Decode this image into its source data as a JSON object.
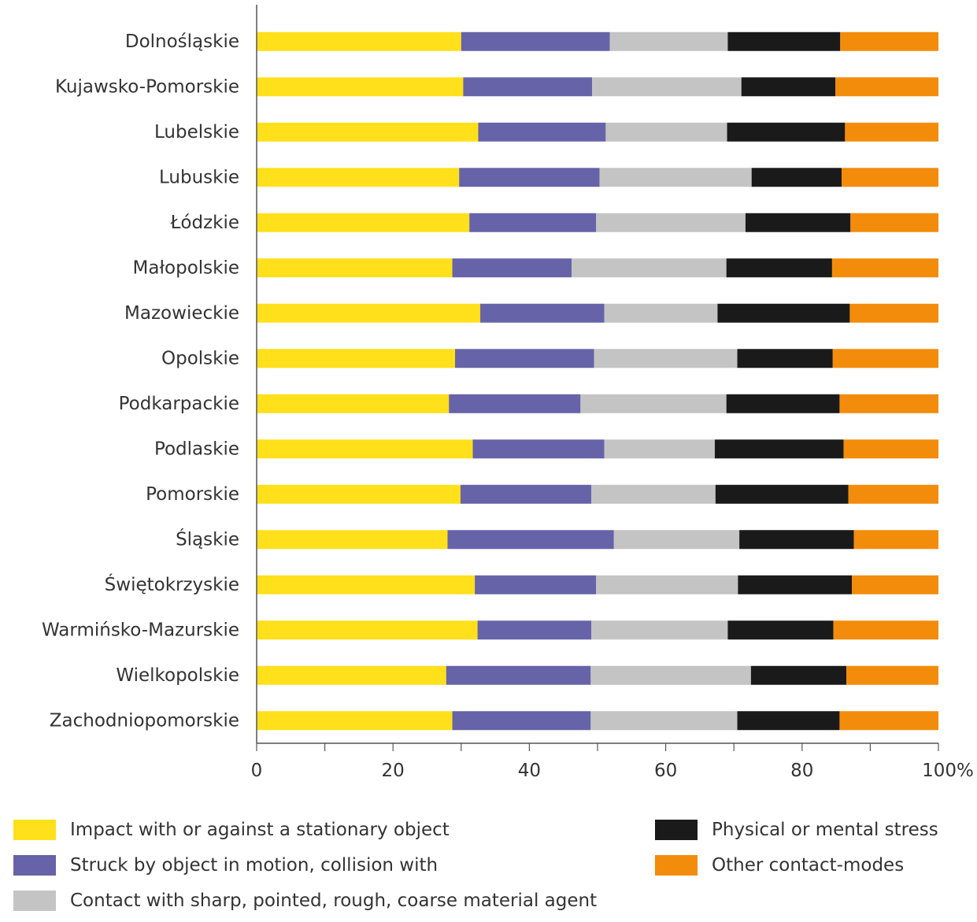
{
  "chart_data": {
    "type": "bar",
    "orientation": "horizontal",
    "stacked": true,
    "title": "",
    "xlabel": "",
    "ylabel": "",
    "xlim": [
      0,
      100
    ],
    "x_ticks": [
      0,
      20,
      40,
      60,
      80,
      100
    ],
    "x_tick_labels": [
      "0",
      "20",
      "40",
      "60",
      "80",
      "100%"
    ],
    "grid": false,
    "legend_position": "bottom",
    "categories": [
      "Dolnośląskie",
      "Kujawsko-Pomorskie",
      "Lubelskie",
      "Lubuskie",
      "Łódzkie",
      "Małopolskie",
      "Mazowieckie",
      "Opolskie",
      "Podkarpackie",
      "Podlaskie",
      "Pomorskie",
      "Śląskie",
      "Świętokrzyskie",
      "Warmińsko-Mazurskie",
      "Wielkopolskie",
      "Zachodniopomorskie"
    ],
    "series": [
      {
        "name": "Impact with or against a stationary object",
        "color": "#FFE01A",
        "values": [
          30.0,
          30.3,
          32.5,
          29.7,
          31.2,
          28.7,
          32.8,
          29.1,
          28.2,
          31.7,
          29.9,
          28.0,
          32.0,
          32.4,
          27.8,
          28.7
        ]
      },
      {
        "name": "Struck by object in motion, collision with",
        "color": "#6763A8",
        "values": [
          21.8,
          18.9,
          18.7,
          20.6,
          18.6,
          17.5,
          18.2,
          20.4,
          19.3,
          19.3,
          19.2,
          24.4,
          17.8,
          16.7,
          21.2,
          20.3
        ]
      },
      {
        "name": "Contact with sharp, pointed, rough, coarse material agent",
        "color": "#C4C4C4",
        "values": [
          17.3,
          21.9,
          17.8,
          22.3,
          21.9,
          22.7,
          16.6,
          21.0,
          21.4,
          16.2,
          18.2,
          18.4,
          20.8,
          20.0,
          23.5,
          21.5
        ]
      },
      {
        "name": "Physical or mental stress",
        "color": "#1A1A1A",
        "values": [
          16.5,
          13.8,
          17.3,
          13.2,
          15.4,
          15.5,
          19.4,
          14.0,
          16.6,
          18.9,
          19.5,
          16.8,
          16.7,
          15.5,
          14.0,
          15.0
        ]
      },
      {
        "name": "Other contact-modes",
        "color": "#F28C0A",
        "values": [
          14.4,
          15.1,
          13.7,
          14.2,
          12.9,
          15.6,
          13.0,
          15.5,
          14.5,
          13.9,
          13.2,
          12.4,
          12.7,
          15.4,
          13.5,
          14.5
        ]
      }
    ]
  }
}
